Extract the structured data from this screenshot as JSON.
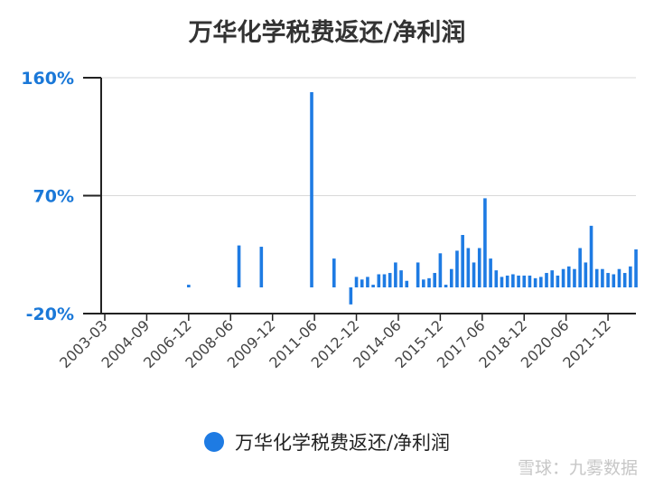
{
  "chart_data": {
    "type": "bar",
    "title": "万华化学税费返还/净利润",
    "xlabel": "",
    "ylabel": "",
    "ylim": [
      -20,
      160
    ],
    "yticks": [
      "160%",
      "70%",
      "-20%"
    ],
    "ytick_values": [
      160,
      70,
      -20
    ],
    "xtick_labels": [
      "2003-03",
      "2004-09",
      "2006-12",
      "2008-06",
      "2009-12",
      "2011-06",
      "2012-12",
      "2014-06",
      "2015-12",
      "2017-06",
      "2018-12",
      "2020-06",
      "2021-12"
    ],
    "grid": true,
    "legend_position": "bottom",
    "bar_color": "#1e7be3",
    "series": [
      {
        "name": "万华化学税费返还/净利润",
        "values": [
          0,
          0,
          0,
          0,
          0,
          0,
          0,
          0,
          0,
          0,
          0,
          0,
          0,
          0,
          0,
          2,
          0,
          0,
          0,
          0,
          0,
          0,
          0,
          0,
          32,
          0,
          0,
          0,
          31,
          0,
          0,
          0,
          0,
          0,
          0,
          0,
          0,
          149,
          0,
          0,
          0,
          22,
          0,
          0,
          -13,
          8,
          6,
          8,
          2,
          10,
          10,
          11,
          19,
          13,
          5,
          0,
          19,
          6,
          7,
          11,
          26,
          2,
          14,
          28,
          40,
          30,
          19,
          30,
          68,
          22,
          13,
          8,
          9,
          10,
          9,
          9,
          9,
          7,
          8,
          11,
          13,
          9,
          14,
          16,
          14,
          30,
          19,
          47,
          14,
          14,
          11,
          10,
          14,
          11,
          16,
          29
        ]
      }
    ]
  },
  "legend": {
    "label": "万华化学税费返还/净利润",
    "color": "#1e7be3"
  },
  "watermark": {
    "text": "雪球：九雾数据"
  }
}
